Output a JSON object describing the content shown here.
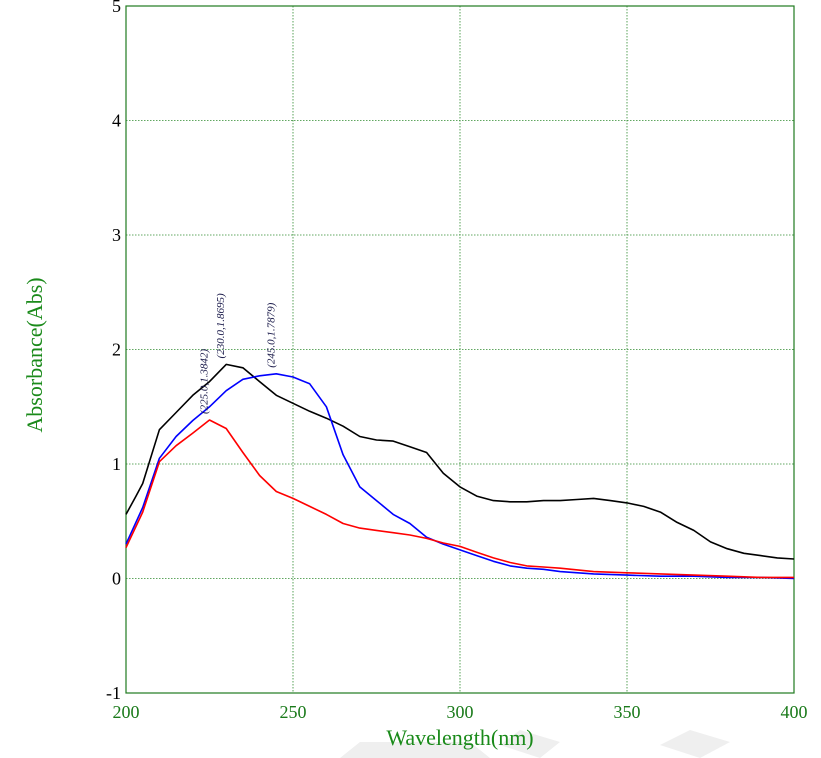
{
  "chart_data": {
    "type": "line",
    "title": "",
    "xlabel": "Wavelength(nm)",
    "ylabel": "Absorbance(Abs)",
    "xlim": [
      200,
      400
    ],
    "ylim": [
      -1,
      5
    ],
    "xticks": [
      "200",
      "250",
      "300",
      "350",
      "400"
    ],
    "yticks": [
      "-1",
      "0",
      "1",
      "2",
      "3",
      "4",
      "5"
    ],
    "grid": true,
    "legend": "none",
    "series": [
      {
        "color": "#000000",
        "x": [
          200,
          203,
          205,
          210,
          215,
          220,
          225,
          230,
          235,
          240,
          245,
          250,
          255,
          260,
          265,
          270,
          275,
          280,
          285,
          290,
          295,
          300,
          305,
          310,
          315,
          320,
          325,
          330,
          335,
          340,
          345,
          350,
          355,
          360,
          365,
          370,
          375,
          380,
          385,
          390,
          395,
          400
        ],
        "y": [
          0.56,
          0.72,
          0.83,
          1.3,
          1.45,
          1.6,
          1.72,
          1.8695,
          1.84,
          1.72,
          1.6,
          1.53,
          1.46,
          1.4,
          1.33,
          1.24,
          1.21,
          1.2,
          1.15,
          1.1,
          0.92,
          0.8,
          0.72,
          0.68,
          0.67,
          0.67,
          0.68,
          0.68,
          0.69,
          0.7,
          0.68,
          0.66,
          0.63,
          0.58,
          0.49,
          0.42,
          0.32,
          0.26,
          0.22,
          0.2,
          0.18,
          0.17
        ]
      },
      {
        "color": "#0000ff",
        "x": [
          200,
          205,
          210,
          215,
          220,
          225,
          230,
          235,
          240,
          245,
          250,
          255,
          260,
          265,
          270,
          275,
          280,
          285,
          290,
          295,
          300,
          305,
          310,
          315,
          320,
          325,
          330,
          340,
          350,
          360,
          370,
          380,
          390,
          400
        ],
        "y": [
          0.3,
          0.62,
          1.05,
          1.24,
          1.38,
          1.5,
          1.64,
          1.74,
          1.77,
          1.7879,
          1.76,
          1.7,
          1.5,
          1.08,
          0.8,
          0.68,
          0.56,
          0.48,
          0.36,
          0.3,
          0.25,
          0.2,
          0.15,
          0.11,
          0.09,
          0.08,
          0.06,
          0.04,
          0.03,
          0.02,
          0.02,
          0.01,
          0.01,
          0.0
        ]
      },
      {
        "color": "#ff0000",
        "x": [
          200,
          205,
          210,
          215,
          220,
          225,
          230,
          235,
          240,
          245,
          250,
          255,
          260,
          265,
          270,
          275,
          280,
          285,
          290,
          295,
          300,
          305,
          310,
          315,
          320,
          325,
          330,
          340,
          350,
          360,
          370,
          380,
          390,
          400
        ],
        "y": [
          0.27,
          0.58,
          1.02,
          1.16,
          1.27,
          1.3842,
          1.31,
          1.1,
          0.9,
          0.76,
          0.7,
          0.63,
          0.56,
          0.48,
          0.44,
          0.42,
          0.4,
          0.38,
          0.35,
          0.31,
          0.28,
          0.23,
          0.18,
          0.14,
          0.11,
          0.1,
          0.09,
          0.06,
          0.05,
          0.04,
          0.03,
          0.02,
          0.01,
          0.01
        ]
      }
    ],
    "annotations": [
      {
        "text": "(225.0,1.3842)",
        "x": 225,
        "y": 1.3842
      },
      {
        "text": "(230.0,1.8695)",
        "x": 230,
        "y": 1.8695
      },
      {
        "text": "(245.0,1.7879)",
        "x": 245,
        "y": 1.7879
      }
    ]
  }
}
